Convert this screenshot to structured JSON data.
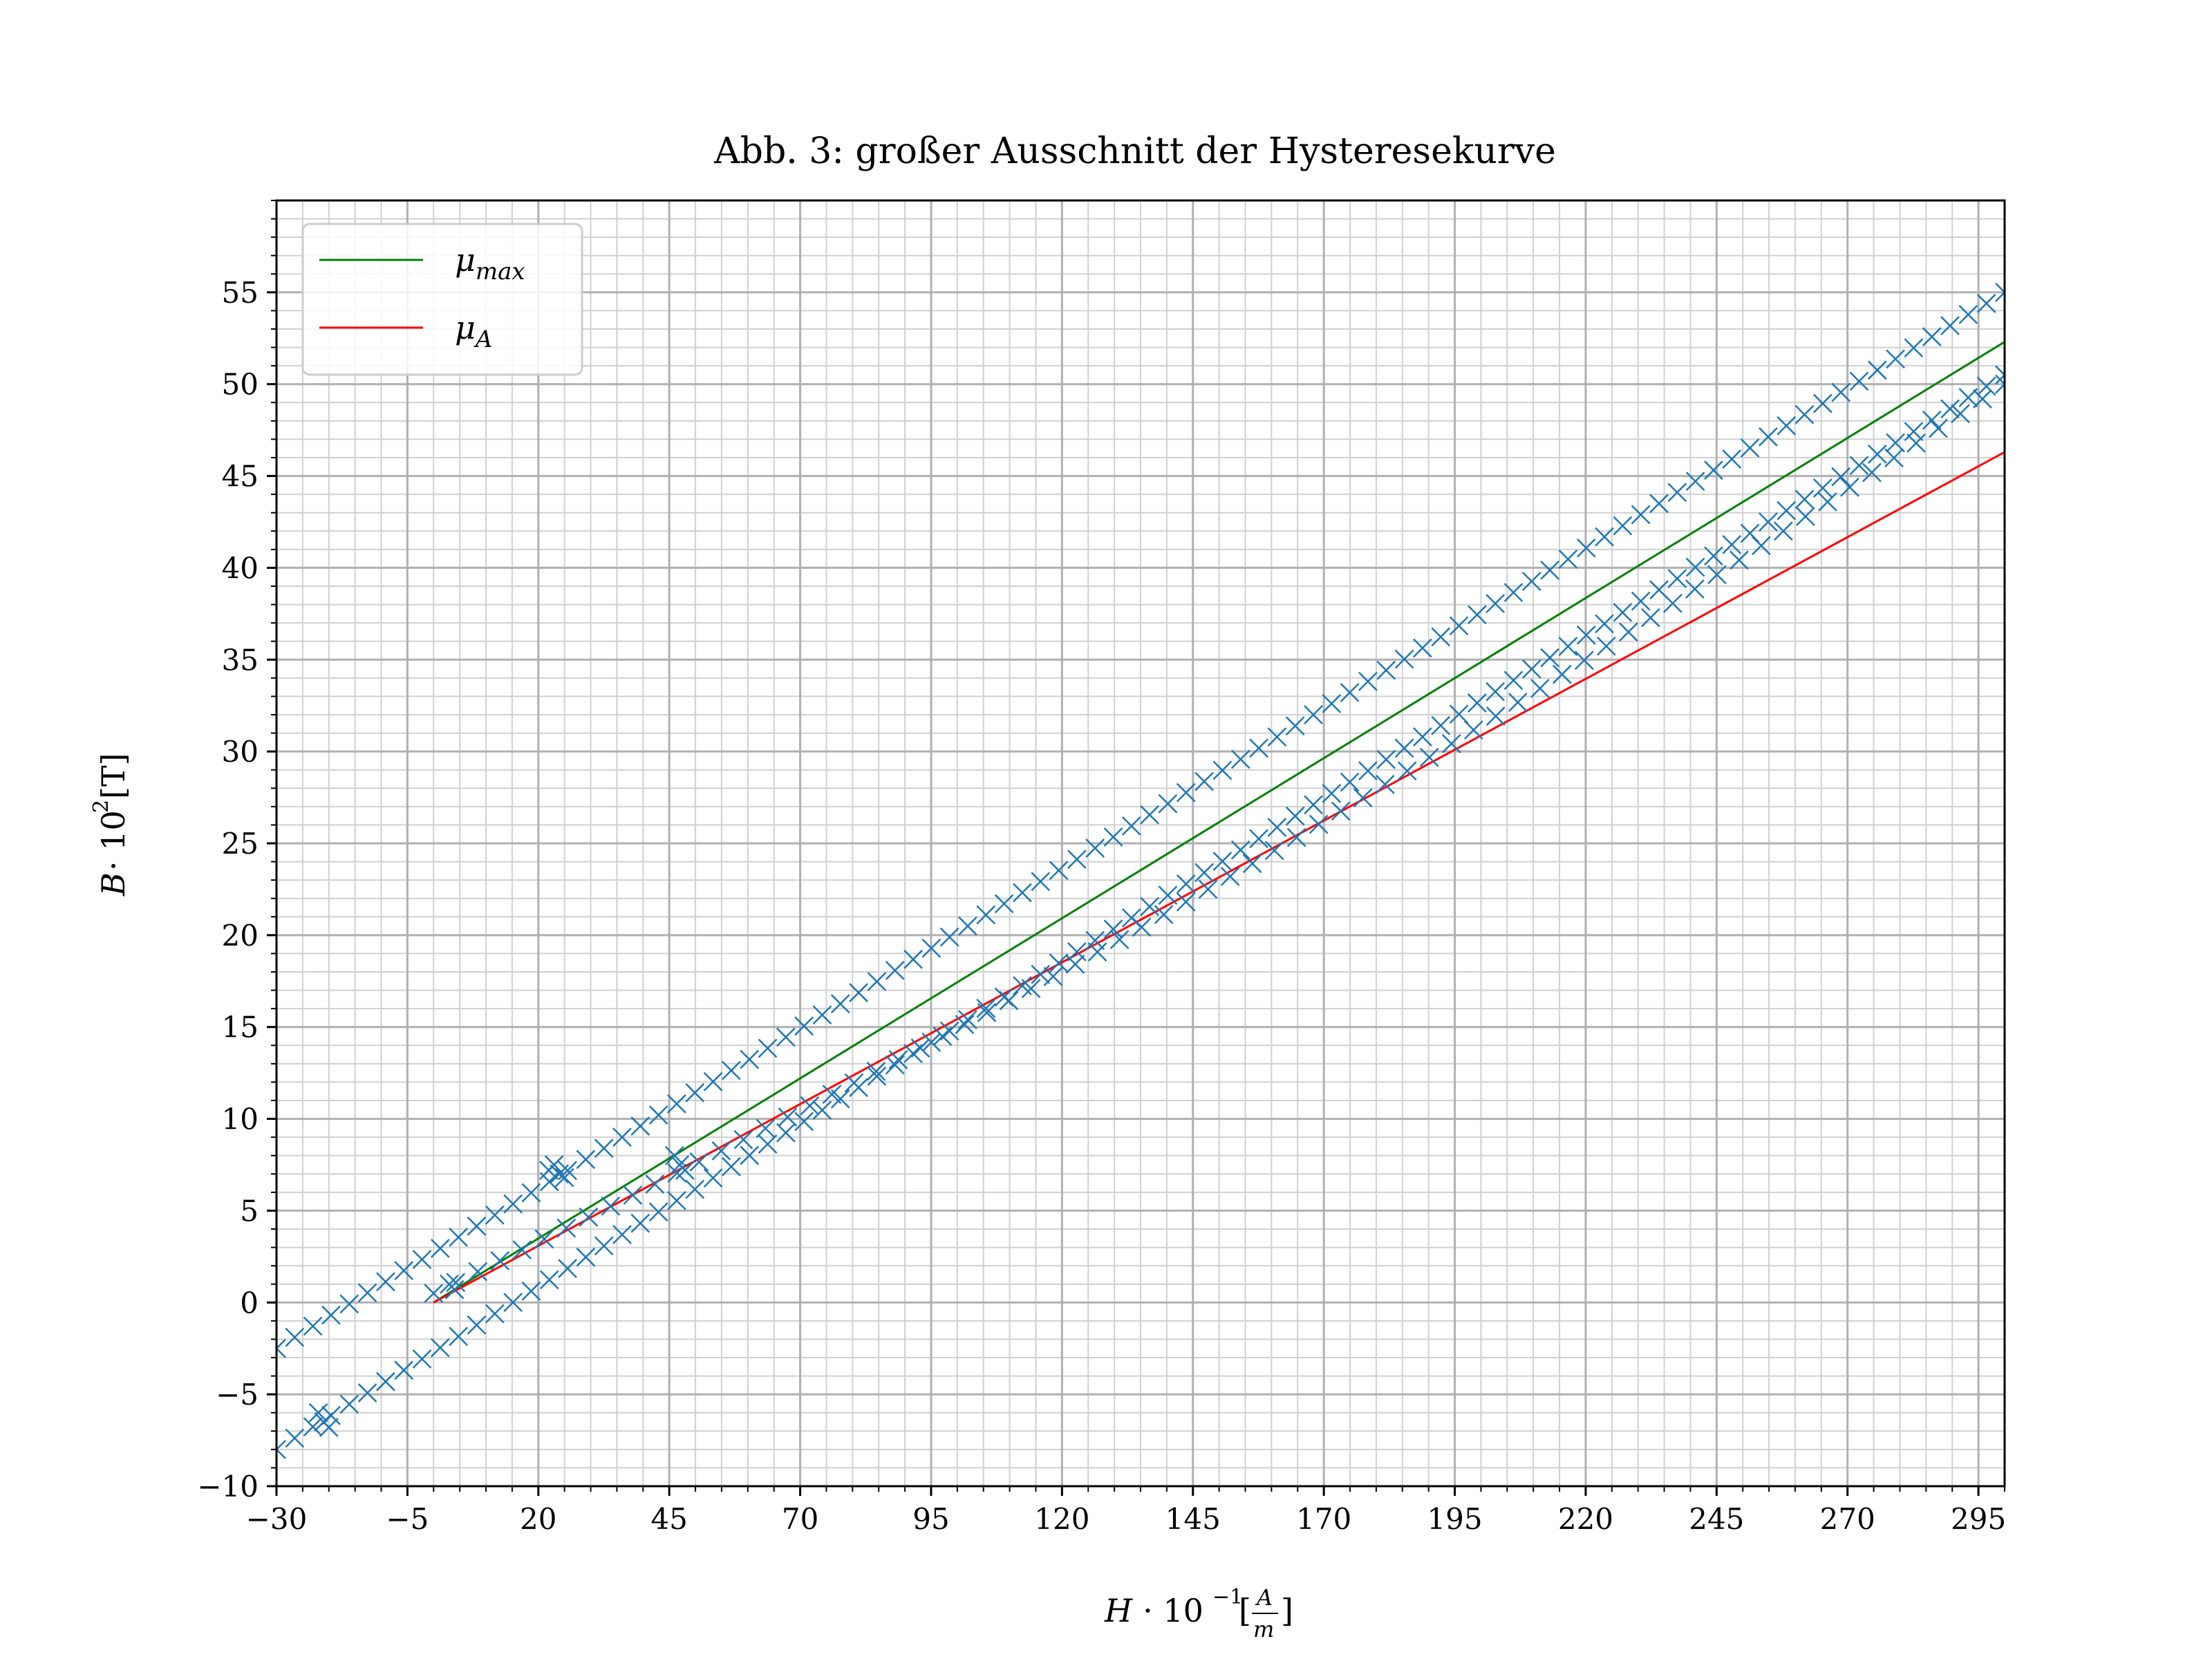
{
  "chart_data": {
    "type": "scatter",
    "title": "Abb. 3: großer Ausschnitt der Hysteresekurve",
    "xlabel": "H · 10⁻¹[A/m]",
    "ylabel": "B · 10²[T]",
    "xlim": [
      -30,
      300
    ],
    "ylim": [
      -10,
      60
    ],
    "xticks": [
      -30,
      -5,
      20,
      45,
      70,
      95,
      120,
      145,
      170,
      195,
      220,
      245,
      270,
      295
    ],
    "yticks": [
      -10,
      -5,
      0,
      5,
      10,
      15,
      20,
      25,
      30,
      35,
      40,
      45,
      50,
      55
    ],
    "xtick_labels": [
      "−30",
      "−5",
      "20",
      "45",
      "70",
      "95",
      "120",
      "145",
      "170",
      "195",
      "220",
      "245",
      "270",
      "295"
    ],
    "ytick_labels": [
      "−10",
      "−5",
      "0",
      "5",
      "10",
      "15",
      "20",
      "25",
      "30",
      "35",
      "40",
      "45",
      "50",
      "55"
    ],
    "grid": "major and minor",
    "legend_position": "top-left",
    "legend": [
      {
        "label": "μmax",
        "base": "μ",
        "sub": "max",
        "color": "#008000"
      },
      {
        "label": "μA",
        "base": "μ",
        "sub": "A",
        "color": "#ff0000"
      }
    ],
    "lines": [
      {
        "name": "μmax",
        "color": "#008000",
        "x": [
          0,
          300
        ],
        "y": [
          0,
          52.3
        ]
      },
      {
        "name": "μA",
        "color": "#ff0000",
        "x": [
          0,
          300
        ],
        "y": [
          0,
          46.3
        ]
      }
    ],
    "series": [
      {
        "marker": "x",
        "color": "#1f77b4",
        "curves": [
          {
            "part": "upper branch",
            "x0": -30,
            "x1": 300,
            "y0": -2.5,
            "y1": 55.0,
            "n": 96
          },
          {
            "part": "lower branch",
            "x0": -30,
            "x1": 300,
            "y0": -8.0,
            "y1": 50.5,
            "n": 96
          },
          {
            "part": "initial curve",
            "x0": 0,
            "x1": 300,
            "y0": 0.5,
            "y1": 50.0,
            "n": 72
          }
        ],
        "clusters": [
          {
            "x": -22,
            "y": -6.0
          },
          {
            "x": -21,
            "y": -6.5
          },
          {
            "x": -20,
            "y": -6.8
          },
          {
            "x": 22,
            "y": 7.2
          },
          {
            "x": 23,
            "y": 7.5
          },
          {
            "x": 24,
            "y": 7.0
          },
          {
            "x": 25,
            "y": 6.8
          },
          {
            "x": 46,
            "y": 8.0
          },
          {
            "x": 47,
            "y": 7.5
          },
          {
            "x": 48,
            "y": 7.2
          },
          {
            "x": 3,
            "y": 1.0
          },
          {
            "x": 4,
            "y": 0.7
          }
        ]
      }
    ]
  }
}
